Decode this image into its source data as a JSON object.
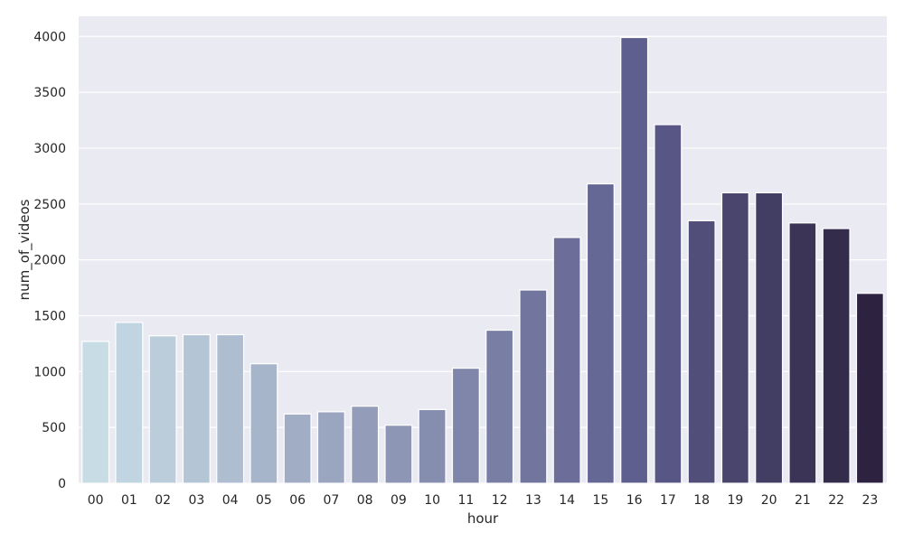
{
  "chart_data": {
    "type": "bar",
    "title": "",
    "xlabel": "hour",
    "ylabel": "num_of_videos",
    "categories": [
      "00",
      "01",
      "02",
      "03",
      "04",
      "05",
      "06",
      "07",
      "08",
      "09",
      "10",
      "11",
      "12",
      "13",
      "14",
      "15",
      "16",
      "17",
      "18",
      "19",
      "20",
      "21",
      "22",
      "23"
    ],
    "values": [
      1270,
      1440,
      1320,
      1330,
      1330,
      1070,
      620,
      640,
      690,
      520,
      660,
      1030,
      1370,
      1730,
      2200,
      2680,
      3990,
      3210,
      2350,
      2600,
      2600,
      2330,
      2280,
      1700
    ],
    "yticks": [
      0,
      500,
      1000,
      1500,
      2000,
      2500,
      3000,
      3500,
      4000
    ],
    "ylim": [
      0,
      4180
    ],
    "grid": true,
    "background_color": "#eaeaf2",
    "palette_start": "#c8dce6",
    "palette_mid": "#5e5e8e",
    "palette_end": "#2d2340"
  }
}
